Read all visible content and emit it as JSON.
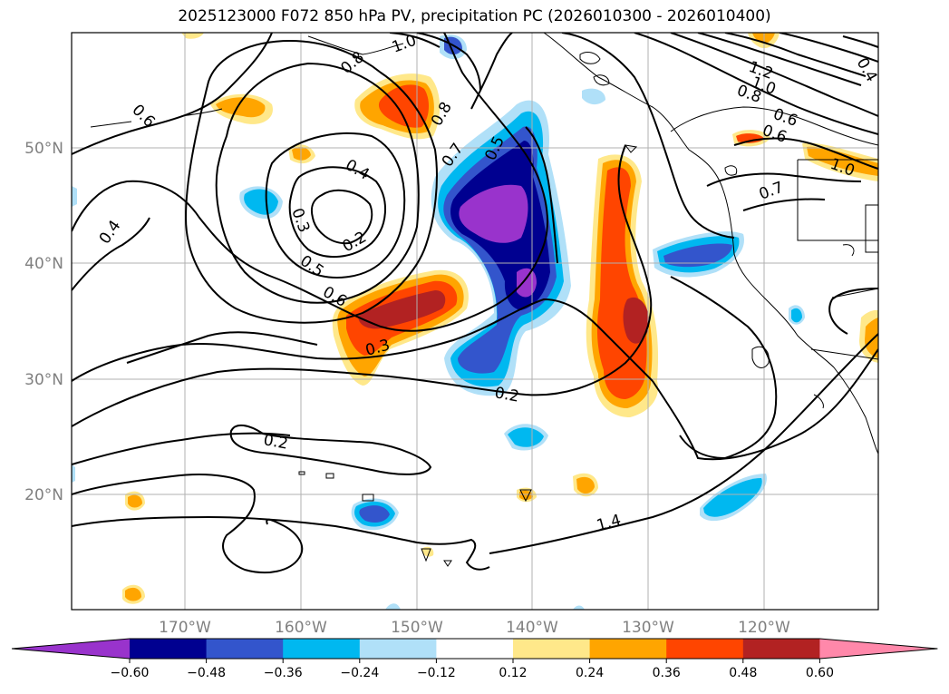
{
  "title": "2025123000 F072 850 hPa PV, precipitation PC (2026010300 - 2026010400)",
  "map": {
    "lon_labels": [
      "170°W",
      "160°W",
      "150°W",
      "140°W",
      "130°W",
      "120°W"
    ],
    "lat_labels": [
      "50°N",
      "40°N",
      "30°N",
      "20°N"
    ],
    "grid": true,
    "axis_label_color": "#808080"
  },
  "contour_labels": [
    {
      "text": "1.0"
    },
    {
      "text": "0.8"
    },
    {
      "text": "0.6"
    },
    {
      "text": "0.4"
    },
    {
      "text": "0.3"
    },
    {
      "text": "0.2"
    },
    {
      "text": "0.5"
    },
    {
      "text": "0.6"
    },
    {
      "text": "0.4"
    },
    {
      "text": "0.8"
    },
    {
      "text": "0.7"
    },
    {
      "text": "0.5"
    },
    {
      "text": "0.3"
    },
    {
      "text": "0.2"
    },
    {
      "text": "0.2"
    },
    {
      "text": "1.4"
    },
    {
      "text": "1.2"
    },
    {
      "text": "1.0"
    },
    {
      "text": "0.8"
    },
    {
      "text": "0.6"
    },
    {
      "text": "0.6"
    },
    {
      "text": "0.7"
    },
    {
      "text": "1.0"
    },
    {
      "text": "0.4"
    }
  ],
  "colorbar": {
    "ticks": [
      "−0.60",
      "−0.48",
      "−0.36",
      "−0.24",
      "−0.12",
      "0.12",
      "0.24",
      "0.36",
      "0.48",
      "0.60"
    ],
    "colors": [
      "#9933cc",
      "#000090",
      "#3355cc",
      "#00b8f0",
      "#b0e0f8",
      "#ffffff",
      "#ffe88a",
      "#ffa500",
      "#ff4500",
      "#b22222",
      "#ff88aa"
    ],
    "extend": "both"
  }
}
